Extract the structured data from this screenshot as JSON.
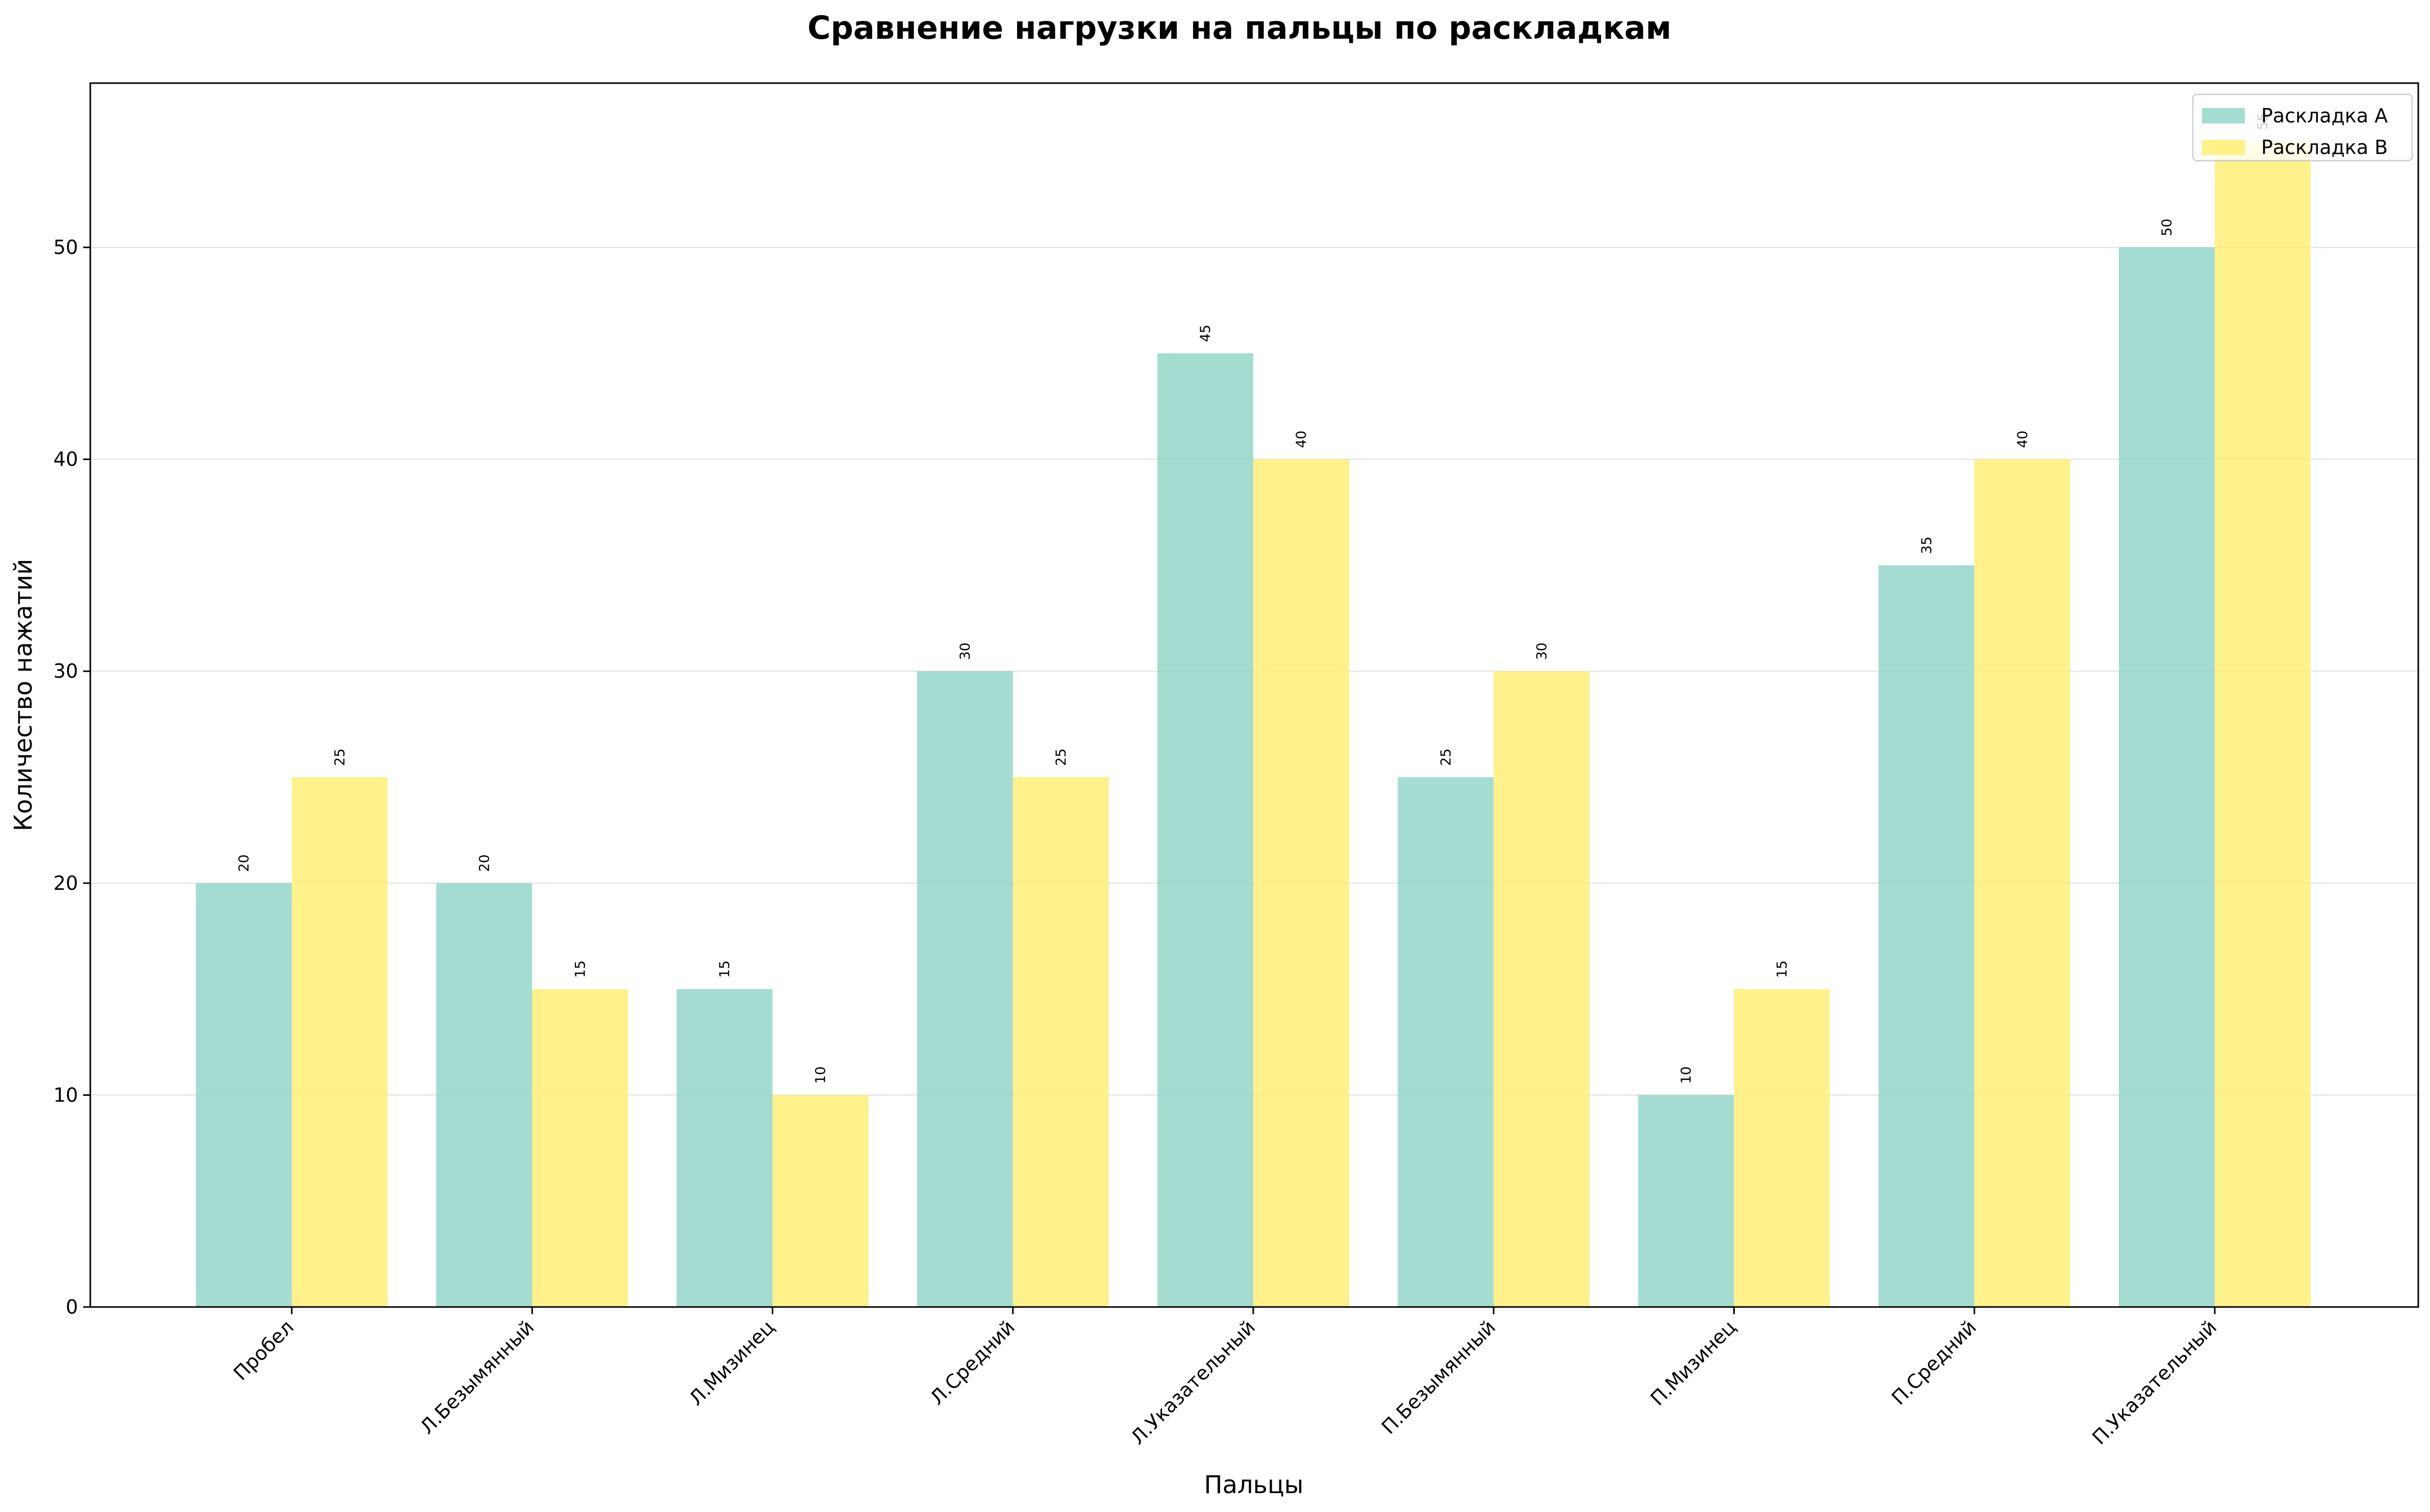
{
  "chart_data": {
    "type": "bar",
    "title": "Сравнение нагрузки на пальцы по раскладкам",
    "xlabel": "Пальцы",
    "ylabel": "Количество нажатий",
    "categories": [
      "Пробел",
      "Л.Безымянный",
      "Л.Мизинец",
      "Л.Средний",
      "Л.Указательный",
      "П.Безымянный",
      "П.Мизинец",
      "П.Средний",
      "П.Указательный"
    ],
    "series": [
      {
        "name": "Раскладка A",
        "color": "#8dd3c7",
        "values": [
          20,
          20,
          15,
          30,
          45,
          25,
          10,
          35,
          50
        ]
      },
      {
        "name": "Раскладка B",
        "color": "#ffed6f",
        "values": [
          25,
          15,
          10,
          25,
          40,
          30,
          15,
          40,
          55
        ]
      }
    ],
    "ylim": [
      0,
      57.75
    ],
    "yticks": [
      0,
      10,
      20,
      30,
      40,
      50
    ],
    "grid": "y",
    "legend_position": "upper right"
  }
}
